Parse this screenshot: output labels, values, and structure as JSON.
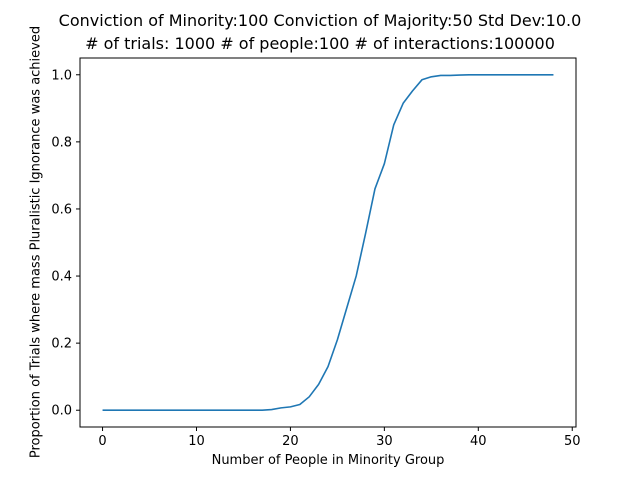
{
  "chart_data": {
    "type": "line",
    "title_lines": [
      "Conviction of Minority:100 Conviction of Majority:50 Std Dev:10.0",
      "# of trials: 1000 # of people:100 # of interactions:100000"
    ],
    "xlabel": "Number of People in Minority Group",
    "ylabel": "Proportion of Trials where mass Pluralistic Ignorance was achieved",
    "xlim": [
      -2.4,
      50.4
    ],
    "ylim": [
      -0.05,
      1.05
    ],
    "xticks": [
      0,
      10,
      20,
      30,
      40,
      50
    ],
    "yticks": [
      0.0,
      0.2,
      0.4,
      0.6,
      0.8,
      1.0
    ],
    "xtick_labels": [
      "0",
      "10",
      "20",
      "30",
      "40",
      "50"
    ],
    "ytick_labels": [
      "0.0",
      "0.2",
      "0.4",
      "0.6",
      "0.8",
      "1.0"
    ],
    "grid": false,
    "line_color": "#1f77b4",
    "series": [
      {
        "x": [
          0,
          1,
          2,
          3,
          4,
          5,
          6,
          7,
          8,
          9,
          10,
          11,
          12,
          13,
          14,
          15,
          16,
          17,
          18,
          19,
          20,
          21,
          22,
          23,
          24,
          25,
          26,
          27,
          28,
          29,
          30,
          31,
          32,
          33,
          34,
          35,
          36,
          37,
          38,
          39,
          40,
          41,
          42,
          43,
          44,
          45,
          46,
          47,
          48
        ],
        "values": [
          0,
          0,
          0,
          0,
          0,
          0,
          0,
          0,
          0,
          0,
          0,
          0,
          0,
          0,
          0,
          0,
          0,
          0,
          0.002,
          0.007,
          0.01,
          0.017,
          0.04,
          0.077,
          0.13,
          0.21,
          0.305,
          0.4,
          0.527,
          0.66,
          0.735,
          0.851,
          0.915,
          0.952,
          0.985,
          0.994,
          0.998,
          0.998,
          0.999,
          1,
          1,
          1,
          1,
          1,
          1,
          1,
          1,
          1,
          1
        ]
      }
    ]
  }
}
